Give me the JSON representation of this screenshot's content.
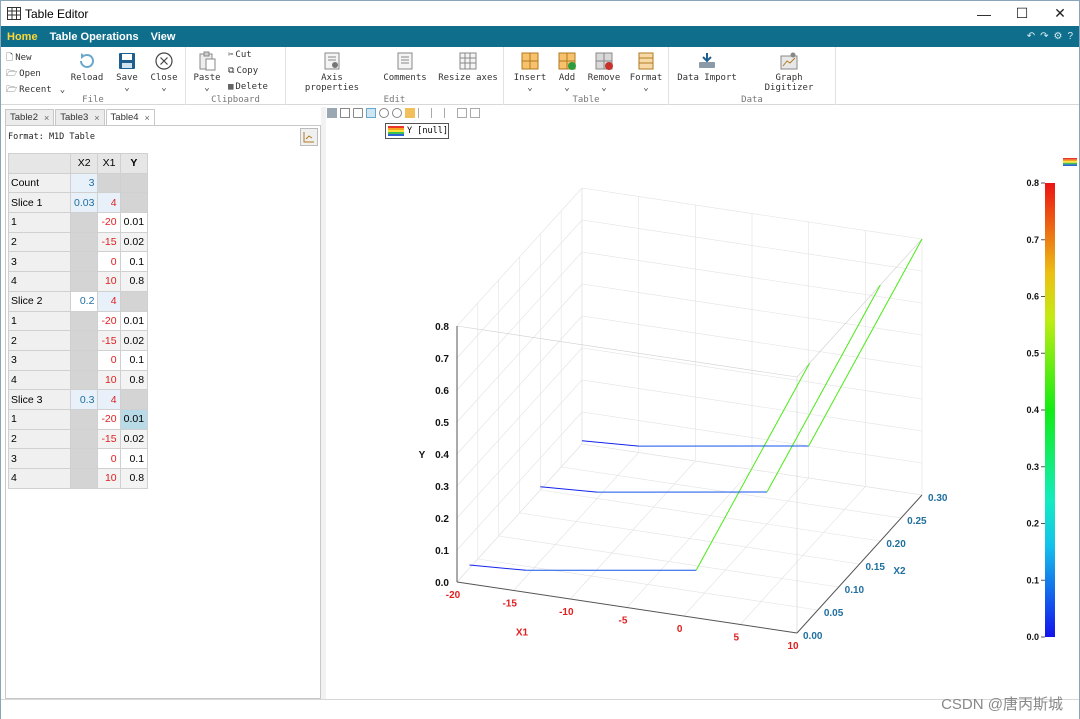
{
  "window": {
    "title": "Table Editor",
    "controls": [
      "—",
      "☐",
      "✕"
    ]
  },
  "menu": {
    "items": [
      "Home",
      "Table Operations",
      "View"
    ],
    "active": "Home"
  },
  "ribbon": {
    "file": {
      "label": "File",
      "new": "New",
      "open": "Open",
      "recent": "Recent",
      "reload": "Reload",
      "save": "Save",
      "close": "Close"
    },
    "clipboard": {
      "label": "Clipboard",
      "paste": "Paste",
      "cut": "Cut",
      "copy": "Copy",
      "delete": "Delete"
    },
    "edit": {
      "label": "Edit",
      "axis_properties": "Axis properties",
      "comments": "Comments",
      "resize_axes": "Resize axes"
    },
    "table": {
      "label": "Table",
      "insert": "Insert",
      "add": "Add",
      "remove": "Remove",
      "format": "Format"
    },
    "data": {
      "label": "Data",
      "data_import": "Data Import",
      "graph_digitizer": "Graph Digitizer"
    }
  },
  "tabs": [
    {
      "label": "Table2",
      "active": false
    },
    {
      "label": "Table3",
      "active": false
    },
    {
      "label": "Table4",
      "active": true
    }
  ],
  "format_label": "Format: M1D Table",
  "grid": {
    "headers": [
      "",
      "X2",
      "X1",
      "Y"
    ],
    "count_row": {
      "label": "Count",
      "x2": "3"
    },
    "slices": [
      {
        "label": "Slice 1",
        "x2": "0.03",
        "x1": "4",
        "rows": [
          [
            "1",
            "-20",
            "0.01"
          ],
          [
            "2",
            "-15",
            "0.02"
          ],
          [
            "3",
            "0",
            "0.1"
          ],
          [
            "4",
            "10",
            "0.8"
          ]
        ]
      },
      {
        "label": "Slice 2",
        "x2": "0.2",
        "x1": "4",
        "rows": [
          [
            "1",
            "-20",
            "0.01"
          ],
          [
            "2",
            "-15",
            "0.02"
          ],
          [
            "3",
            "0",
            "0.1"
          ],
          [
            "4",
            "10",
            "0.8"
          ]
        ]
      },
      {
        "label": "Slice 3",
        "x2": "0.3",
        "x1": "4",
        "rows": [
          [
            "1",
            "-20",
            "0.01"
          ],
          [
            "2",
            "-15",
            "0.02"
          ],
          [
            "3",
            "0",
            "0.1"
          ],
          [
            "4",
            "10",
            "0.8"
          ]
        ]
      }
    ]
  },
  "legend": {
    "label": "Y [null]"
  },
  "chart_data": {
    "type": "line",
    "title": "",
    "xlabel": "X1",
    "ylabel": "Y",
    "zlabel": "X2",
    "x": [
      -20,
      -15,
      0,
      10
    ],
    "series": [
      {
        "x2": 0.03,
        "values": [
          0.01,
          0.02,
          0.1,
          0.8
        ]
      },
      {
        "x2": 0.2,
        "values": [
          0.01,
          0.02,
          0.1,
          0.8
        ]
      },
      {
        "x2": 0.3,
        "values": [
          0.01,
          0.02,
          0.1,
          0.8
        ]
      }
    ],
    "x_ticks": [
      "-20",
      "-15",
      "-10",
      "-5",
      "0",
      "5",
      "10"
    ],
    "y_ticks": [
      "0.0",
      "0.1",
      "0.2",
      "0.3",
      "0.4",
      "0.5",
      "0.6",
      "0.7",
      "0.8"
    ],
    "z_ticks": [
      "0.00",
      "0.05",
      "0.10",
      "0.15",
      "0.20",
      "0.25",
      "0.30"
    ],
    "xlim": [
      -20,
      10
    ],
    "ylim": [
      0,
      0.8
    ],
    "zlim": [
      0,
      0.3
    ],
    "colorbar": {
      "ticks": [
        "0.0",
        "0.1",
        "0.2",
        "0.3",
        "0.4",
        "0.5",
        "0.6",
        "0.7",
        "0.8"
      ],
      "range": [
        0,
        0.8
      ]
    },
    "grid": true,
    "colors": {
      "x_axis": "#e02020",
      "z_axis": "#1f6f9f"
    }
  },
  "watermark": "CSDN @唐丙斯城",
  "colors": {
    "menubar": "#0e6e8c",
    "active_menu": "#ffd838"
  }
}
